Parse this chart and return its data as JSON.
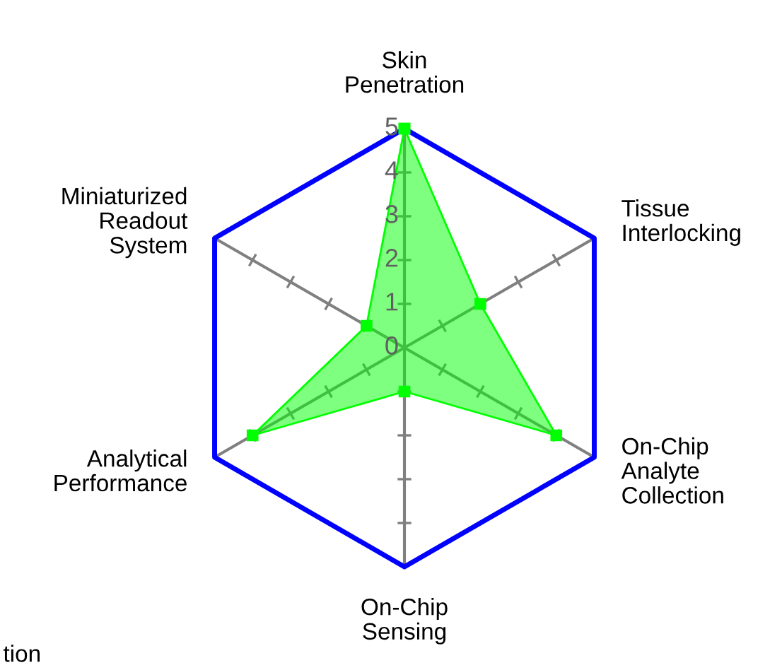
{
  "chart_data": {
    "type": "radar",
    "categories": [
      "Skin\nPenetration",
      "Tissue\nInterlocking",
      "On-Chip\nAnalyte\nCollection",
      "On-Chip\nSensing",
      "Analytical\nPerformance",
      "Miniaturized\nReadout\nSystem"
    ],
    "series": [
      {
        "color": "#00ff00",
        "values": [
          5,
          2,
          4,
          1,
          4,
          1
        ]
      }
    ],
    "ylim": [
      0,
      5
    ],
    "yticks": [
      0,
      1,
      2,
      3,
      4,
      5
    ],
    "marker": "square",
    "grid": true,
    "legend": false,
    "annotations": [
      "tion"
    ]
  }
}
